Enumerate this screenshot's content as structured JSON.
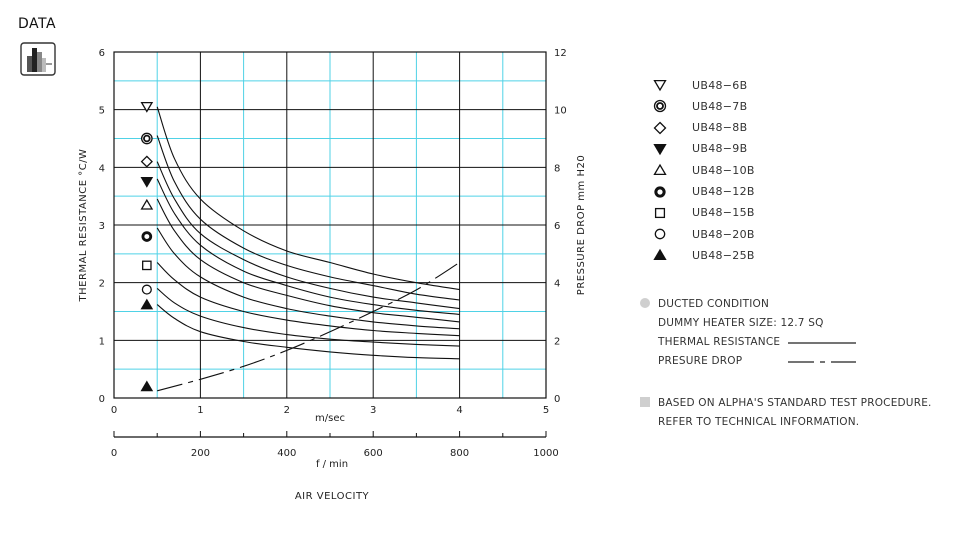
{
  "header": {
    "label": "DATA",
    "icon": "bar-chart-data-icon"
  },
  "chart_data": {
    "type": "line",
    "ylabel_left": "THERMAL RESISTANCE  °C/W",
    "ylabel_right": "PRESSURE DROP  mm H20",
    "xlabel_top": "m/sec",
    "xlabel_bottom": "f / min",
    "xlabel_main": "AIR VELOCITY",
    "xlim_msec": [
      0,
      5
    ],
    "xlim_fmin": [
      0,
      1000
    ],
    "ylim_left": [
      0,
      6
    ],
    "ylim_right": [
      0,
      12
    ],
    "x_ticks_msec": [
      "0",
      "1",
      "2",
      "3",
      "4",
      "5"
    ],
    "x_ticks_fmin": [
      "0",
      "200",
      "400",
      "600",
      "800",
      "1000"
    ],
    "y_ticks_left": [
      "0",
      "1",
      "2",
      "3",
      "4",
      "5",
      "6"
    ],
    "y_ticks_right": [
      "0",
      "2",
      "4",
      "6",
      "8",
      "10",
      "12"
    ],
    "grid": true,
    "thermal_resistance_series": [
      {
        "name": "UB48-6B",
        "marker": "triangle-down-open",
        "x": [
          0.5,
          0.7,
          1.0,
          1.5,
          2.0,
          2.5,
          3.0,
          3.5,
          4.0
        ],
        "y": [
          5.05,
          4.15,
          3.45,
          2.9,
          2.55,
          2.35,
          2.15,
          2.0,
          1.88
        ]
      },
      {
        "name": "UB48-7B",
        "marker": "double-circle",
        "x": [
          0.5,
          0.7,
          1.0,
          1.5,
          2.0,
          2.5,
          3.0,
          3.5,
          4.0
        ],
        "y": [
          4.55,
          3.75,
          3.1,
          2.6,
          2.3,
          2.1,
          1.95,
          1.8,
          1.7
        ]
      },
      {
        "name": "UB48-8B",
        "marker": "diamond-open",
        "x": [
          0.5,
          0.7,
          1.0,
          1.5,
          2.0,
          2.5,
          3.0,
          3.5,
          4.0
        ],
        "y": [
          4.1,
          3.45,
          2.85,
          2.4,
          2.1,
          1.9,
          1.75,
          1.65,
          1.55
        ]
      },
      {
        "name": "UB48-9B",
        "marker": "triangle-down-filled",
        "x": [
          0.5,
          0.7,
          1.0,
          1.5,
          2.0,
          2.5,
          3.0,
          3.5,
          4.0
        ],
        "y": [
          3.8,
          3.2,
          2.65,
          2.2,
          1.95,
          1.75,
          1.62,
          1.52,
          1.45
        ]
      },
      {
        "name": "UB48-10B",
        "marker": "triangle-up-open",
        "x": [
          0.5,
          0.7,
          1.0,
          1.5,
          2.0,
          2.5,
          3.0,
          3.5,
          4.0
        ],
        "y": [
          3.45,
          2.9,
          2.4,
          2.0,
          1.78,
          1.6,
          1.48,
          1.4,
          1.32
        ]
      },
      {
        "name": "UB48-12B",
        "marker": "circle-thick",
        "x": [
          0.5,
          0.7,
          1.0,
          1.5,
          2.0,
          2.5,
          3.0,
          3.5,
          4.0
        ],
        "y": [
          2.95,
          2.5,
          2.1,
          1.75,
          1.55,
          1.42,
          1.32,
          1.25,
          1.2
        ]
      },
      {
        "name": "UB48-15B",
        "marker": "square-open",
        "x": [
          0.5,
          0.7,
          1.0,
          1.5,
          2.0,
          2.5,
          3.0,
          3.5,
          4.0
        ],
        "y": [
          2.35,
          2.05,
          1.75,
          1.5,
          1.35,
          1.25,
          1.17,
          1.12,
          1.08
        ]
      },
      {
        "name": "UB48-20B",
        "marker": "circle-open",
        "x": [
          0.5,
          0.7,
          1.0,
          1.5,
          2.0,
          2.5,
          3.0,
          3.5,
          4.0
        ],
        "y": [
          1.9,
          1.65,
          1.42,
          1.22,
          1.1,
          1.02,
          0.97,
          0.93,
          0.9
        ]
      },
      {
        "name": "UB48-25B",
        "marker": "triangle-up-filled",
        "x": [
          0.5,
          0.7,
          1.0,
          1.5,
          2.0,
          2.5,
          3.0,
          3.5,
          4.0
        ],
        "y": [
          1.62,
          1.38,
          1.15,
          0.98,
          0.88,
          0.8,
          0.74,
          0.7,
          0.68
        ]
      }
    ],
    "pressure_drop": {
      "name": "PRESURE DROP",
      "x": [
        0.5,
        1.0,
        1.5,
        2.0,
        2.5,
        3.0,
        3.5,
        4.0
      ],
      "y": [
        0.25,
        0.65,
        1.1,
        1.65,
        2.3,
        3.0,
        3.75,
        4.7
      ]
    },
    "marker_values_left": [
      5.05,
      4.5,
      4.1,
      3.75,
      3.35,
      2.8,
      2.3,
      1.88,
      1.62,
      0.2
    ]
  },
  "legend": [
    {
      "label": "UB48−6B",
      "marker": "triangle-down-open"
    },
    {
      "label": "UB48−7B",
      "marker": "double-circle"
    },
    {
      "label": "UB48−8B",
      "marker": "diamond-open"
    },
    {
      "label": "UB48−9B",
      "marker": "triangle-down-filled"
    },
    {
      "label": "UB48−10B",
      "marker": "triangle-up-open"
    },
    {
      "label": "UB48−12B",
      "marker": "circle-thick"
    },
    {
      "label": "UB48−15B",
      "marker": "square-open"
    },
    {
      "label": "UB48−20B",
      "marker": "circle-open"
    },
    {
      "label": "UB48−25B",
      "marker": "triangle-up-filled"
    }
  ],
  "notes": {
    "ducted": "DUCTED CONDITION",
    "heater": "DUMMY HEATER SIZE: 12.7 SQ",
    "thermal": "THERMAL RESISTANCE",
    "pressure": "PRESURE DROP",
    "standard": "BASED ON ALPHA'S STANDARD TEST PROCEDURE.",
    "refer": "REFER TO TECHNICAL INFORMATION."
  },
  "colors": {
    "grid_black": "#111111",
    "grid_cyan": "#4fd2e6",
    "note_gray": "#cfcfcf"
  }
}
